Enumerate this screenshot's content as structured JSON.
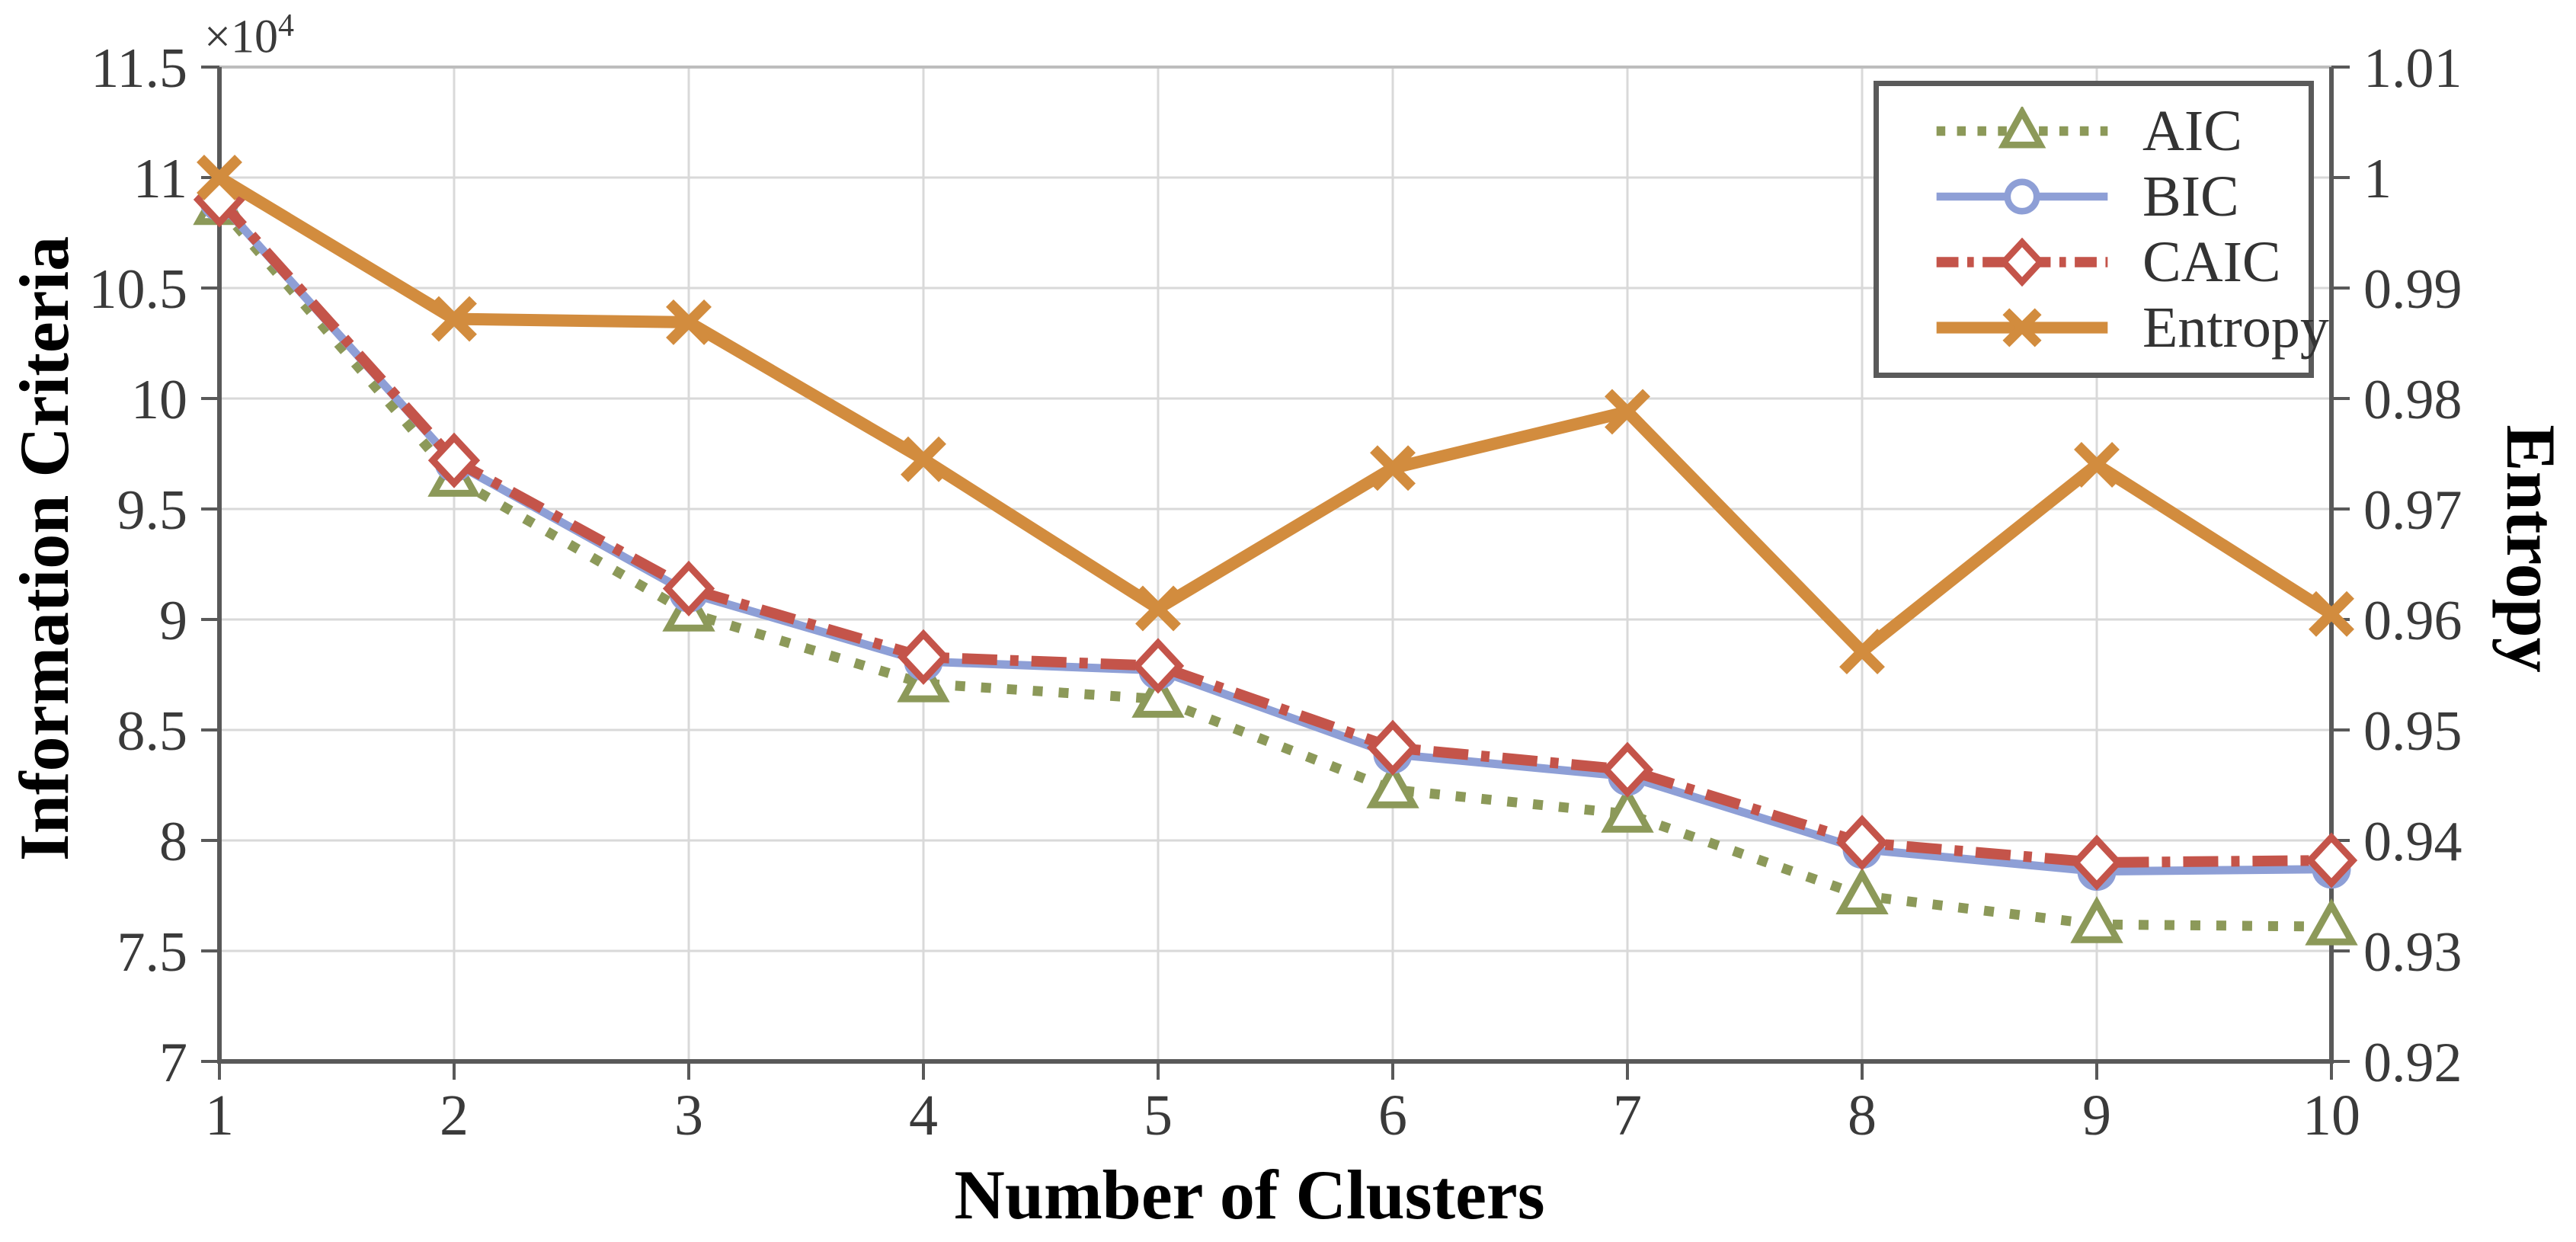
{
  "chart_data": {
    "type": "line",
    "title": "",
    "xlabel": "Number of Clusters",
    "ylabel_left": "Information Criteria",
    "ylabel_right": "Entropy",
    "left_axis_multiplier": "×10⁴",
    "left_axis_multiplier_base": "×10",
    "left_axis_multiplier_exp": "4",
    "x": [
      1,
      2,
      3,
      4,
      5,
      6,
      7,
      8,
      9,
      10
    ],
    "x_tick_labels": [
      "1",
      "2",
      "3",
      "4",
      "5",
      "6",
      "7",
      "8",
      "9",
      "10"
    ],
    "ylim_left": [
      7,
      11.5
    ],
    "y_left_tick_step": 0.5,
    "y_left_tick_labels": [
      "7",
      "7.5",
      "8",
      "8.5",
      "9",
      "9.5",
      "10",
      "10.5",
      "11",
      "11.5"
    ],
    "ylim_right": [
      0.92,
      1.01
    ],
    "y_right_tick_step": 0.01,
    "y_right_tick_labels": [
      "0.92",
      "0.93",
      "0.94",
      "0.95",
      "0.96",
      "0.97",
      "0.98",
      "0.99",
      "1",
      "1.01"
    ],
    "grid": true,
    "legend_position": "top-right",
    "series": [
      {
        "name": "AIC",
        "axis": "left",
        "units": "x10^4",
        "color": "#8C9959",
        "line_style": "dotted",
        "marker": "triangle",
        "values": [
          10.87,
          9.64,
          9.03,
          8.71,
          8.64,
          8.23,
          8.12,
          7.75,
          7.62,
          7.61
        ]
      },
      {
        "name": "BIC",
        "axis": "left",
        "units": "x10^4",
        "color": "#8E9FD6",
        "line_style": "solid",
        "marker": "circle",
        "values": [
          10.89,
          9.71,
          9.12,
          8.81,
          8.77,
          8.39,
          8.29,
          7.96,
          7.86,
          7.87
        ]
      },
      {
        "name": "CAIC",
        "axis": "left",
        "units": "x10^4",
        "color": "#C4544A",
        "line_style": "dash-dot",
        "marker": "diamond",
        "values": [
          10.9,
          9.72,
          9.14,
          8.83,
          8.79,
          8.42,
          8.32,
          7.99,
          7.9,
          7.91
        ]
      },
      {
        "name": "Entropy",
        "axis": "right",
        "units": "",
        "color": "#D28C3E",
        "line_style": "solid",
        "marker": "x",
        "values": [
          1.0,
          0.9872,
          0.9869,
          0.9745,
          0.961,
          0.9737,
          0.9788,
          0.9571,
          0.974,
          0.9605
        ]
      }
    ]
  },
  "colors": {
    "axis": "#595959",
    "top_border": "#bdbdbd",
    "grid": "#d9d9d9",
    "tick_text": "#3a3a3a",
    "legend_border": "#5a5a5a",
    "background": "#ffffff"
  }
}
